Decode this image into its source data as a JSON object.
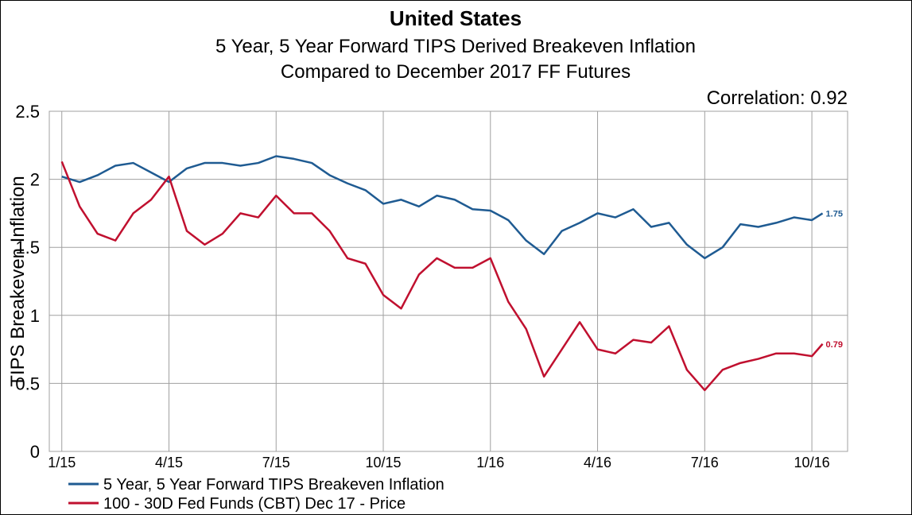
{
  "chart_data": {
    "type": "line",
    "title": "United States",
    "subtitle": [
      "5 Year, 5 Year Forward TIPS Derived Breakeven Inflation",
      "Compared to December 2017 FF Futures"
    ],
    "annotation": "Correlation: 0.92",
    "y_label": "TIPS Breakeven Inflation",
    "x": [
      0,
      0.5,
      1,
      1.5,
      2,
      2.5,
      3,
      3.5,
      4,
      4.5,
      5,
      5.5,
      6,
      6.5,
      7,
      7.5,
      8,
      8.5,
      9,
      9.5,
      10,
      10.5,
      11,
      11.5,
      12,
      12.5,
      13,
      13.5,
      14,
      14.5,
      15,
      15.5,
      16,
      16.5,
      17,
      17.5,
      18,
      18.5,
      19,
      19.5,
      20,
      20.5,
      21,
      21.3
    ],
    "series": [
      {
        "name": "5 Year, 5 Year Forward TIPS Breakeven Inflation",
        "color": "#1f5b92",
        "values": [
          2.02,
          1.98,
          2.03,
          2.1,
          2.12,
          2.05,
          1.98,
          2.08,
          2.12,
          2.12,
          2.1,
          2.12,
          2.17,
          2.15,
          2.12,
          2.03,
          1.97,
          1.92,
          1.82,
          1.85,
          1.8,
          1.88,
          1.85,
          1.78,
          1.77,
          1.7,
          1.55,
          1.45,
          1.62,
          1.68,
          1.75,
          1.72,
          1.78,
          1.65,
          1.68,
          1.52,
          1.42,
          1.5,
          1.67,
          1.65,
          1.68,
          1.72,
          1.7,
          1.75
        ],
        "value_labels": [
          null,
          null,
          null,
          null,
          null,
          null,
          null,
          null,
          null,
          null,
          null,
          null,
          null,
          null,
          null,
          null,
          null,
          null,
          null,
          null,
          null,
          null,
          null,
          null,
          null,
          null,
          null,
          null,
          null,
          null,
          null,
          null,
          null,
          null,
          null,
          null,
          null,
          null,
          null,
          null,
          null,
          null,
          null,
          "1.75"
        ]
      },
      {
        "name": "100 - 30D Fed Funds (CBT) Dec 17 - Price",
        "color": "#c0102f",
        "values": [
          2.13,
          1.8,
          1.6,
          1.55,
          1.75,
          1.85,
          2.02,
          1.62,
          1.52,
          1.6,
          1.75,
          1.72,
          1.88,
          1.75,
          1.75,
          1.62,
          1.42,
          1.38,
          1.15,
          1.05,
          1.3,
          1.42,
          1.35,
          1.35,
          1.42,
          1.1,
          0.9,
          0.55,
          0.75,
          0.95,
          0.75,
          0.72,
          0.82,
          0.8,
          0.92,
          0.6,
          0.45,
          0.6,
          0.65,
          0.68,
          0.72,
          0.72,
          0.7,
          0.79
        ],
        "value_labels": [
          null,
          null,
          null,
          null,
          null,
          null,
          null,
          null,
          null,
          null,
          null,
          null,
          null,
          null,
          null,
          null,
          null,
          null,
          null,
          null,
          null,
          null,
          null,
          null,
          null,
          null,
          null,
          null,
          null,
          null,
          null,
          null,
          null,
          null,
          null,
          null,
          null,
          null,
          null,
          null,
          null,
          null,
          null,
          "0.79"
        ]
      }
    ],
    "xlim": [
      -0.35,
      22
    ],
    "xticks": [
      {
        "value": 0,
        "label": "1/15"
      },
      {
        "value": 3,
        "label": "4/15"
      },
      {
        "value": 6,
        "label": "7/15"
      },
      {
        "value": 9,
        "label": "10/15"
      },
      {
        "value": 12,
        "label": "1/16"
      },
      {
        "value": 15,
        "label": "4/16"
      },
      {
        "value": 18,
        "label": "7/16"
      },
      {
        "value": 21,
        "label": "10/16"
      }
    ],
    "ylim": [
      0,
      2.5
    ],
    "yticks": [
      0,
      0.5,
      1,
      1.5,
      2,
      2.5
    ],
    "grid": true
  }
}
